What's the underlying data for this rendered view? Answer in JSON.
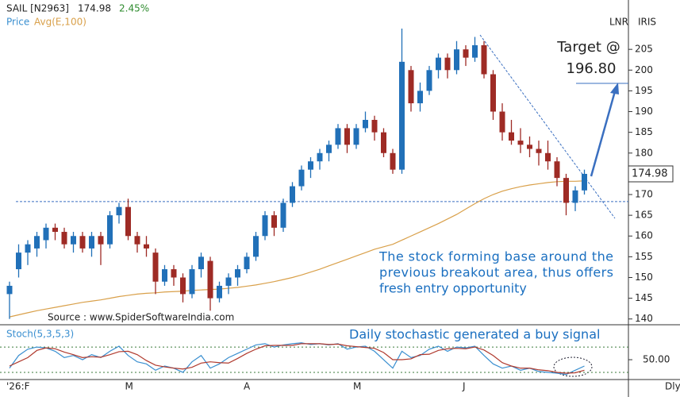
{
  "chart_data": {
    "type": "candlestick",
    "symbol": "SAIL [N2963]",
    "last": "174.98",
    "change": "2.45%",
    "legend": [
      "Price",
      "Avg(E,100)"
    ],
    "top_right": [
      "LNR",
      "IRIS"
    ],
    "periodicity": "Dly",
    "source": "Source : www.SpiderSoftwareIndia.com",
    "note": [
      "The stock forming base around the",
      "previous breakout area, thus offers",
      "fresh entry opportunity"
    ],
    "target": {
      "text": "Target @",
      "value": 196.8,
      "label": "196.80"
    },
    "support_level": 168.3,
    "up_color": "#2170b8",
    "down_color": "#9e2b25",
    "avg_color": "#d9a04a",
    "categories": [
      "'26:F",
      null,
      null,
      null,
      null,
      null,
      null,
      null,
      null,
      null,
      null,
      null,
      null,
      "M",
      null,
      null,
      null,
      null,
      null,
      null,
      null,
      null,
      null,
      null,
      null,
      null,
      "A",
      null,
      null,
      null,
      null,
      null,
      null,
      null,
      null,
      null,
      null,
      null,
      "M",
      null,
      null,
      null,
      null,
      null,
      null,
      null,
      null,
      null,
      null,
      null,
      "J",
      null,
      null,
      null,
      null,
      null,
      null,
      null,
      null,
      null,
      null,
      null,
      null,
      null
    ],
    "open": [
      146,
      152,
      156,
      157,
      159,
      162,
      161,
      158,
      160,
      157,
      160,
      158,
      165,
      167,
      160,
      158,
      156,
      149,
      152,
      150,
      146,
      152,
      154,
      145,
      148,
      150,
      152,
      155,
      160,
      165,
      162,
      168,
      172,
      176,
      178,
      180,
      182,
      186,
      182,
      186,
      188,
      185,
      180,
      176,
      200,
      192,
      195,
      200,
      203,
      200,
      205,
      203,
      206,
      199,
      190,
      185,
      183,
      182,
      181,
      180,
      178,
      174,
      168,
      171
    ],
    "high": [
      149,
      158,
      159,
      161,
      163,
      163,
      162,
      161,
      161,
      161,
      161,
      166,
      168,
      169,
      161,
      160,
      157,
      153,
      153,
      151,
      153,
      156,
      155,
      149,
      151,
      153,
      156,
      161,
      166,
      166,
      169,
      173,
      177,
      179,
      181,
      183,
      187,
      187,
      187,
      190,
      189,
      186,
      181,
      210,
      201,
      197,
      201,
      204,
      204,
      207,
      206,
      208,
      207,
      200,
      192,
      188,
      186,
      184,
      183,
      183,
      179,
      175,
      172,
      176
    ],
    "low": [
      140,
      150,
      153,
      155,
      157,
      159,
      157,
      156,
      156,
      155,
      153,
      157,
      163,
      159,
      156,
      155,
      146,
      148,
      148,
      144,
      145,
      150,
      142,
      144,
      146,
      148,
      151,
      154,
      159,
      160,
      161,
      167,
      171,
      174,
      176,
      178,
      181,
      180,
      181,
      185,
      183,
      179,
      175,
      175,
      190,
      190,
      194,
      198,
      198,
      199,
      201,
      202,
      198,
      188,
      183,
      182,
      180,
      179,
      177,
      176,
      172,
      165,
      166,
      170
    ],
    "close": [
      148,
      156,
      158,
      160,
      162,
      161,
      158,
      160,
      157,
      160,
      158,
      165,
      167,
      160,
      158,
      157,
      149,
      152,
      150,
      146,
      152,
      155,
      145,
      148,
      150,
      152,
      155,
      160,
      165,
      162,
      168,
      172,
      176,
      178,
      180,
      182,
      186,
      182,
      186,
      188,
      185,
      180,
      176,
      202,
      192,
      195,
      200,
      203,
      200,
      205,
      203,
      206,
      199,
      190,
      185,
      183,
      182,
      181,
      180,
      178,
      174,
      168,
      171,
      174.98
    ],
    "avg": [
      140.5,
      141,
      141.5,
      142,
      142.4,
      142.8,
      143.2,
      143.6,
      144,
      144.3,
      144.6,
      145,
      145.4,
      145.7,
      146,
      146.2,
      146.3,
      146.5,
      146.6,
      146.7,
      146.9,
      147,
      147.1,
      147.2,
      147.4,
      147.6,
      147.9,
      148.2,
      148.6,
      149,
      149.5,
      150,
      150.6,
      151.3,
      152,
      152.8,
      153.6,
      154.4,
      155.2,
      156,
      156.8,
      157.4,
      158,
      159,
      160,
      161,
      162,
      163,
      164.1,
      165.2,
      166.5,
      167.8,
      169,
      170,
      170.8,
      171.4,
      171.9,
      172.3,
      172.6,
      172.9,
      173.1,
      173.2,
      173.2,
      173.3
    ],
    "ylim": [
      138.8,
      216.9
    ],
    "yticks": [
      140,
      145,
      150,
      155,
      160,
      165,
      170,
      175,
      180,
      185,
      190,
      195,
      200,
      205
    ],
    "stoch": {
      "title": "Stoch(5,3,5,3)",
      "annotation": "Daily stochastic generated a buy signal",
      "ylim": [
        3,
        131
      ],
      "yticks": [
        {
          "value": 50,
          "label": "50.00"
        }
      ],
      "levels": [
        20,
        80
      ],
      "series": [
        {
          "color": "#3a8fd0",
          "values": [
            30,
            60,
            75,
            80,
            78,
            70,
            55,
            60,
            50,
            62,
            55,
            70,
            82,
            60,
            45,
            40,
            25,
            35,
            30,
            20,
            45,
            60,
            30,
            40,
            55,
            65,
            75,
            85,
            88,
            80,
            85,
            88,
            90,
            86,
            88,
            85,
            88,
            75,
            80,
            82,
            70,
            50,
            30,
            70,
            55,
            60,
            75,
            82,
            70,
            80,
            78,
            82,
            60,
            40,
            30,
            35,
            25,
            30,
            22,
            20,
            18,
            15,
            25,
            35
          ]
        },
        {
          "color": "#b03a2e",
          "values": [
            35,
            45,
            55,
            72,
            78,
            76,
            68,
            62,
            55,
            57,
            56,
            62,
            69,
            70,
            62,
            48,
            37,
            33,
            30,
            28,
            32,
            42,
            45,
            43,
            42,
            53,
            65,
            75,
            83,
            84,
            84,
            84,
            88,
            88,
            88,
            86,
            87,
            83,
            81,
            79,
            77,
            67,
            50,
            50,
            52,
            62,
            63,
            72,
            76,
            77,
            76,
            80,
            73,
            60,
            43,
            35,
            30,
            30,
            26,
            24,
            20,
            18,
            19,
            25
          ]
        }
      ]
    }
  }
}
